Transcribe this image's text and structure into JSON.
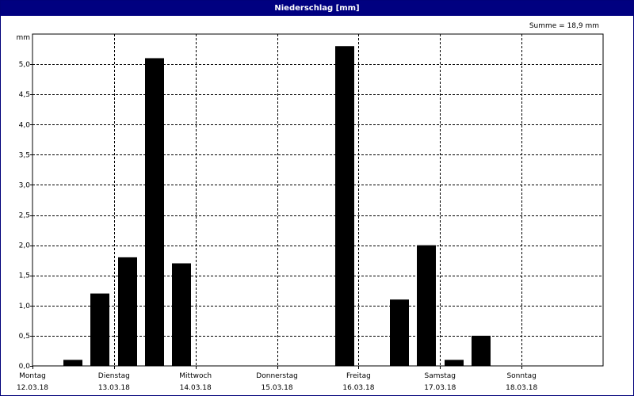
{
  "window": {
    "title": "Niederschlag [mm]"
  },
  "chart_data": {
    "type": "bar",
    "title": "Niederschlag [mm]",
    "ylabel": "mm",
    "summary": "Summe = 18,9 mm",
    "ylim": [
      0,
      5.5
    ],
    "yticks": [
      {
        "value": 0.0,
        "label": "0,0"
      },
      {
        "value": 0.5,
        "label": "0,5"
      },
      {
        "value": 1.0,
        "label": "1,0"
      },
      {
        "value": 1.5,
        "label": "1,5"
      },
      {
        "value": 2.0,
        "label": "2,0"
      },
      {
        "value": 2.5,
        "label": "2,5"
      },
      {
        "value": 3.0,
        "label": "3,0"
      },
      {
        "value": 3.5,
        "label": "3,5"
      },
      {
        "value": 4.0,
        "label": "4,0"
      },
      {
        "value": 4.5,
        "label": "4,5"
      },
      {
        "value": 5.0,
        "label": "5,0"
      }
    ],
    "days": [
      {
        "day": "Montag",
        "date": "12.03.18"
      },
      {
        "day": "Dienstag",
        "date": "13.03.18"
      },
      {
        "day": "Mittwoch",
        "date": "14.03.18"
      },
      {
        "day": "Donnerstag",
        "date": "15.03.18"
      },
      {
        "day": "Freitag",
        "date": "16.03.18"
      },
      {
        "day": "Samstag",
        "date": "17.03.18"
      },
      {
        "day": "Sonntag",
        "date": "18.03.18"
      }
    ],
    "x_unit": "days from start of Montag 12.03.18",
    "grid": true,
    "bars": [
      {
        "x": 0.5,
        "value": 0.1
      },
      {
        "x": 0.83,
        "value": 1.2
      },
      {
        "x": 1.17,
        "value": 1.8
      },
      {
        "x": 1.5,
        "value": 5.1
      },
      {
        "x": 1.83,
        "value": 1.7
      },
      {
        "x": 3.83,
        "value": 5.3
      },
      {
        "x": 4.5,
        "value": 1.1
      },
      {
        "x": 4.83,
        "value": 2.0
      },
      {
        "x": 5.17,
        "value": 0.1
      },
      {
        "x": 5.5,
        "value": 0.5
      }
    ],
    "bar_color": "#000000"
  }
}
